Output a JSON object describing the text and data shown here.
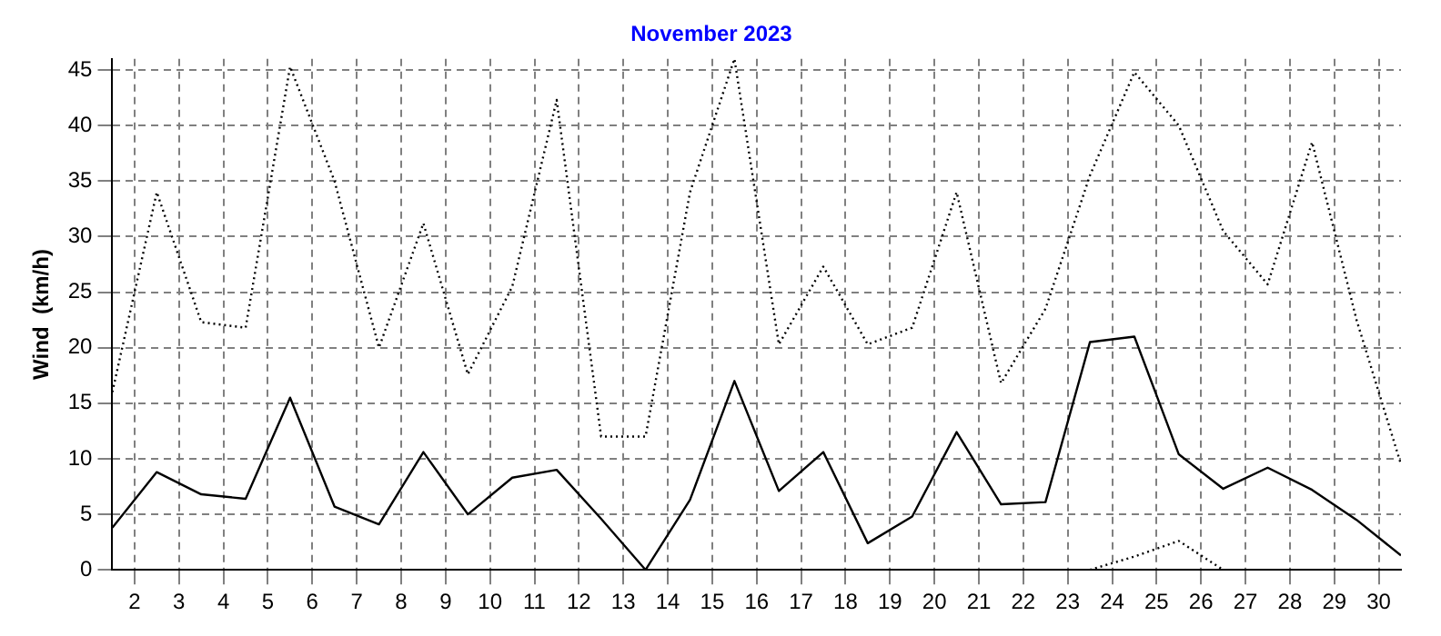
{
  "chart_data": {
    "type": "line",
    "title": "November 2023",
    "ylabel": "Wind  (km/h)",
    "x": [
      1.5,
      2.5,
      3.5,
      4.5,
      5.5,
      6.5,
      7.5,
      8.5,
      9.5,
      10.5,
      11.5,
      12.5,
      13.5,
      14.5,
      15.5,
      16.5,
      17.5,
      18.5,
      19.5,
      20.5,
      21.5,
      22.5,
      23.5,
      24.5,
      25.5,
      26.5,
      27.5,
      28.5,
      29.5,
      30.5
    ],
    "series": [
      {
        "color": "#000000",
        "line_style": "dotted",
        "values": [
          16,
          34,
          22.3,
          21.8,
          45.3,
          35,
          20,
          31.2,
          17.6,
          25.5,
          42.3,
          12,
          12,
          34,
          46,
          20.3,
          27.3,
          20.3,
          21.8,
          34,
          16.8,
          23.5,
          35.5,
          44.8,
          40,
          30.5,
          25.7,
          38.5,
          22.5,
          9.5
        ]
      },
      {
        "color": "#000000",
        "line_style": "solid",
        "values": [
          3.8,
          8.8,
          6.8,
          6.4,
          15.5,
          5.7,
          4.1,
          10.6,
          5,
          8.3,
          9,
          4.6,
          0,
          6.3,
          17,
          7.1,
          10.6,
          2.4,
          4.8,
          12.4,
          5.9,
          6.1,
          20.5,
          21,
          10.4,
          7.3,
          9.2,
          7.2,
          4.5,
          1.3
        ]
      },
      {
        "color": "#000000",
        "line_style": "dotted",
        "values": [
          null,
          null,
          null,
          null,
          null,
          null,
          null,
          null,
          null,
          null,
          null,
          null,
          null,
          null,
          null,
          null,
          null,
          null,
          null,
          null,
          null,
          null,
          0,
          1.2,
          2.6,
          0,
          null,
          null,
          null,
          null
        ]
      }
    ],
    "xlim": [
      1.5,
      30.5
    ],
    "xticks": [
      2,
      3,
      4,
      5,
      6,
      7,
      8,
      9,
      10,
      11,
      12,
      13,
      14,
      15,
      16,
      17,
      18,
      19,
      20,
      21,
      22,
      23,
      24,
      25,
      26,
      27,
      28,
      29,
      30
    ],
    "ylim": [
      0,
      46
    ],
    "yticks": [
      0,
      5,
      10,
      15,
      20,
      25,
      30,
      35,
      40,
      45
    ],
    "grid": true,
    "legend": false,
    "marker": "none"
  }
}
